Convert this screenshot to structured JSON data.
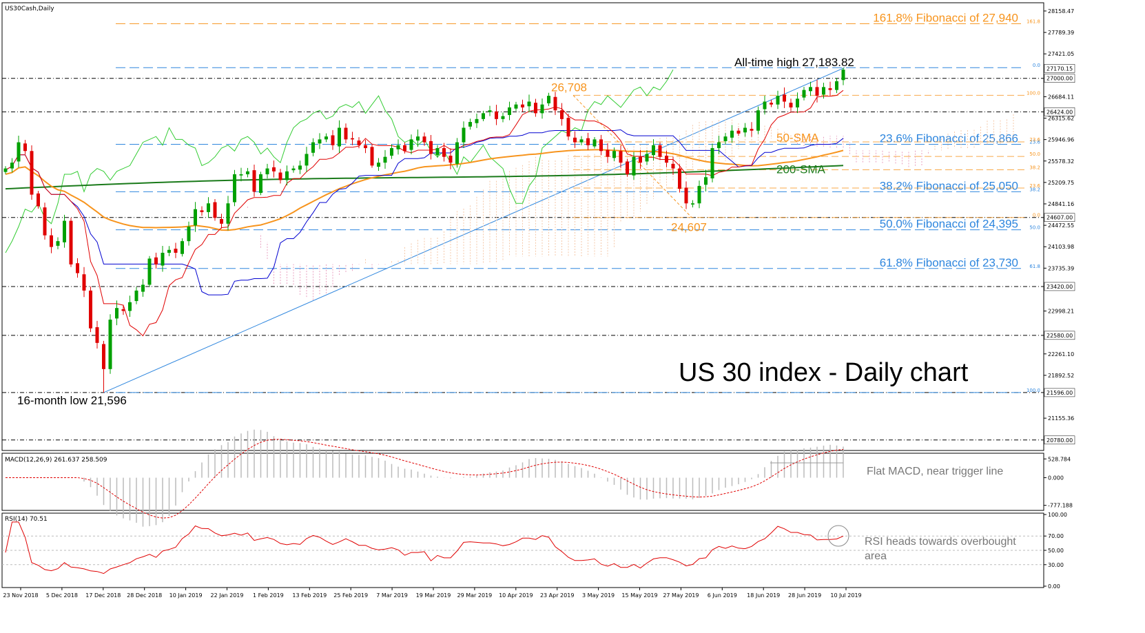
{
  "chart_data": {
    "type": "candlestick",
    "symbol_label": "US30Cash,Daily",
    "title": "US 30 index - Daily chart",
    "ylim": [
      20600,
      28300
    ],
    "price_ticks": [
      "28158.47",
      "27789.39",
      "27421.05",
      "26684.11",
      "26315.62",
      "25946.96",
      "25578.32",
      "25209.75",
      "24841.16",
      "24472.55",
      "24103.98",
      "23735.39",
      "22998.21",
      "22261.10",
      "21892.52",
      "21155.36"
    ],
    "x_tick_labels": [
      "23 Nov 2018",
      "5 Dec 2018",
      "17 Dec 2018",
      "28 Dec 2018",
      "10 Jan 2019",
      "22 Jan 2019",
      "1 Feb 2019",
      "13 Feb 2019",
      "25 Feb 2019",
      "7 Mar 2019",
      "19 Mar 2019",
      "29 Mar 2019",
      "10 Apr 2019",
      "23 Apr 2019",
      "3 May 2019",
      "15 May 2019",
      "27 May 2019",
      "6 Jun 2019",
      "18 Jun 2019",
      "28 Jun 2019",
      "10 Jul 2019"
    ],
    "horizontal_levels": [
      {
        "value": 27000,
        "label": "27000.00"
      },
      {
        "value": 26424,
        "label": "26424.00"
      },
      {
        "value": 24607,
        "label": "24607.00"
      },
      {
        "value": 23420,
        "label": "23420.00"
      },
      {
        "value": 22580,
        "label": "22580.00"
      },
      {
        "value": 21596,
        "label": "21596.00"
      },
      {
        "value": 20780,
        "label": "20780.00"
      }
    ],
    "current_price": {
      "value": 27170.15,
      "label": "27170.15"
    },
    "fibonacci_long": [
      {
        "value": 27940,
        "ratio": "161.8",
        "label": "161.8% Fibonacci of 27,940",
        "color": "#f7941d"
      },
      {
        "value": 27184,
        "ratio": "0.0",
        "label": "",
        "color": "#2e86de"
      },
      {
        "value": 25866,
        "ratio": "23.6",
        "label": "23.6% Fibonacci of 25,866",
        "color": "#2e86de"
      },
      {
        "value": 25050,
        "ratio": "38.2",
        "label": "38.2% Fibonacci of 25,050",
        "color": "#2e86de"
      },
      {
        "value": 24395,
        "ratio": "50.0",
        "label": "50.0% Fibonacci of 24,395",
        "color": "#2e86de"
      },
      {
        "value": 23730,
        "ratio": "61.8",
        "label": "61.8% Fibonacci of 23,730",
        "color": "#2e86de"
      },
      {
        "value": 21596,
        "ratio": "100.0",
        "label": "",
        "color": "#2e86de"
      }
    ],
    "fibonacci_short": [
      {
        "value": 26708,
        "ratio": "100.0"
      },
      {
        "value": 25907,
        "ratio": "23.6"
      },
      {
        "value": 25657,
        "ratio": "50.0"
      },
      {
        "value": 25428,
        "ratio": "38.2"
      },
      {
        "value": 25113,
        "ratio": "23.6"
      },
      {
        "value": 24607,
        "ratio": "0.0"
      }
    ],
    "annotations": {
      "ath": "All-time high 27,183.82",
      "high_26708": "26,708",
      "low_24607": "24,607",
      "low_16m": "16-month low 21,596",
      "sma50": "50-SMA",
      "sma200": "200-SMA"
    },
    "macd": {
      "label": "MACD(12,26,9) 261.637 258.509",
      "ticks": [
        "528.784",
        "0.000",
        "-777.188"
      ],
      "ylim": [
        -900,
        650
      ],
      "note": "Flat MACD, near trigger line"
    },
    "rsi": {
      "label": "RSI(14) 70.51",
      "ticks": [
        "100.00",
        "70.00",
        "50.00",
        "30.00",
        "0.00"
      ],
      "note_line1": "RSI heads towards overbought",
      "note_line2": "area"
    },
    "colors": {
      "bull": "#00a000",
      "bear": "#e00000",
      "sma50": "#f7941d",
      "sma200": "#1a7a1a",
      "tenkan": "#e00000",
      "kijun": "#0000d0",
      "chikou": "#33cc33",
      "fib_blue": "#2e86de",
      "fib_orange": "#f7941d"
    },
    "close": [
      25450,
      25550,
      25900,
      25750,
      25000,
      24800,
      24300,
      24100,
      24200,
      24550,
      23800,
      23650,
      23350,
      22700,
      22450,
      22000,
      22850,
      23050,
      23000,
      23150,
      23350,
      23450,
      23900,
      23800,
      24000,
      24050,
      24000,
      24200,
      24450,
      24750,
      24700,
      24850,
      24600,
      24500,
      24850,
      25350,
      25350,
      25400,
      25050,
      25350,
      25450,
      25400,
      25250,
      25400,
      25450,
      25500,
      25700,
      25900,
      25950,
      26000,
      25850,
      26150,
      25950,
      25950,
      25850,
      25800,
      25500,
      25550,
      25650,
      25800,
      25850,
      25750,
      25950,
      26000,
      25900,
      25700,
      25800,
      25650,
      25550,
      25900,
      26150,
      26250,
      26300,
      26400,
      26450,
      26300,
      26350,
      26500,
      26550,
      26500,
      26600,
      26400,
      26550,
      26700,
      26450,
      26300,
      26000,
      25900,
      25950,
      25850,
      25950,
      25750,
      25650,
      25750,
      25550,
      25350,
      25650,
      25550,
      25700,
      25850,
      25650,
      25550,
      25450,
      25100,
      24850,
      24850,
      25150,
      25300,
      25800,
      25900,
      26000,
      26100,
      26050,
      26150,
      26100,
      26450,
      26600,
      26550,
      26700,
      26600,
      26500,
      26650,
      26800,
      26850,
      26700,
      26850,
      26800,
      26950,
      27150
    ]
  }
}
